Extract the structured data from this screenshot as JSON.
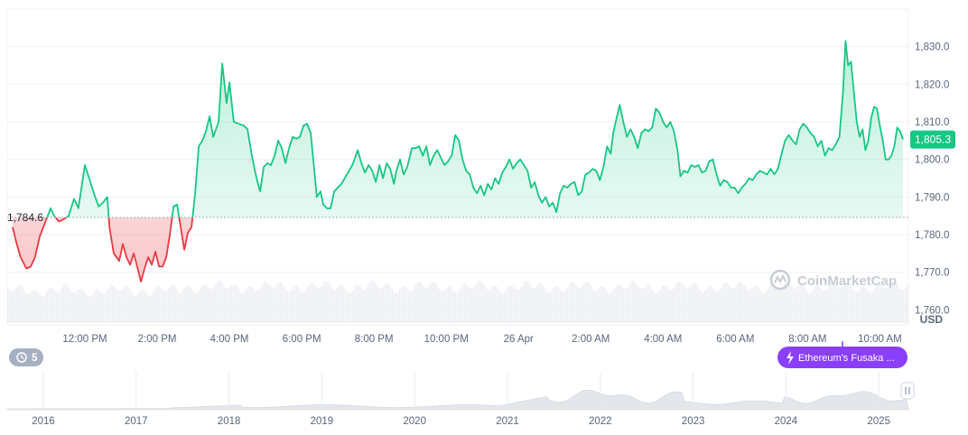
{
  "chart_data": {
    "type": "line",
    "currency": "USD",
    "watermark": "CoinMarketCap",
    "reference_price": 1784.6,
    "reference_label": "1,784.6",
    "current_price": 1805.3,
    "current_label": "1,805.3",
    "ylim": [
      1756,
      1840
    ],
    "y_ticks": [
      {
        "value": 1830,
        "label": "1,830.0"
      },
      {
        "value": 1820,
        "label": "1,820.0"
      },
      {
        "value": 1810,
        "label": "1,810.0"
      },
      {
        "value": 1800,
        "label": "1,800.0"
      },
      {
        "value": 1790,
        "label": "1,790.0"
      },
      {
        "value": 1780,
        "label": "1,780.0"
      },
      {
        "value": 1770,
        "label": "1,770.0"
      },
      {
        "value": 1760,
        "label": "1,760.0"
      }
    ],
    "x_ticks": [
      {
        "t": 2,
        "label": "12:00 PM"
      },
      {
        "t": 4,
        "label": "2:00 PM"
      },
      {
        "t": 6,
        "label": "4:00 PM"
      },
      {
        "t": 8,
        "label": "6:00 PM"
      },
      {
        "t": 10,
        "label": "8:00 PM"
      },
      {
        "t": 12,
        "label": "10:00 PM"
      },
      {
        "t": 14,
        "label": "26 Apr"
      },
      {
        "t": 16,
        "label": "2:00 AM"
      },
      {
        "t": 18,
        "label": "4:00 AM"
      },
      {
        "t": 20,
        "label": "6:00 AM"
      },
      {
        "t": 22,
        "label": "8:00 AM"
      },
      {
        "t": 24,
        "label": "10:00 AM"
      }
    ],
    "price_points": [
      [
        0.0,
        1782.0
      ],
      [
        0.1,
        1778.0
      ],
      [
        0.22,
        1774.0
      ],
      [
        0.38,
        1771.0
      ],
      [
        0.5,
        1771.5
      ],
      [
        0.62,
        1774.0
      ],
      [
        0.75,
        1779.5
      ],
      [
        0.85,
        1782.0
      ],
      [
        1.05,
        1787.0
      ],
      [
        1.15,
        1785.0
      ],
      [
        1.28,
        1783.5
      ],
      [
        1.4,
        1784.0
      ],
      [
        1.55,
        1785.0
      ],
      [
        1.7,
        1789.5
      ],
      [
        1.82,
        1787.0
      ],
      [
        2.0,
        1798.5
      ],
      [
        2.12,
        1795.0
      ],
      [
        2.25,
        1791.0
      ],
      [
        2.38,
        1787.5
      ],
      [
        2.5,
        1788.5
      ],
      [
        2.62,
        1790.0
      ],
      [
        2.68,
        1782.0
      ],
      [
        2.8,
        1775.0
      ],
      [
        2.95,
        1773.0
      ],
      [
        3.05,
        1777.5
      ],
      [
        3.15,
        1774.0
      ],
      [
        3.25,
        1772.0
      ],
      [
        3.35,
        1775.0
      ],
      [
        3.42,
        1772.5
      ],
      [
        3.55,
        1767.5
      ],
      [
        3.65,
        1771.0
      ],
      [
        3.75,
        1774.0
      ],
      [
        3.85,
        1772.0
      ],
      [
        3.95,
        1775.5
      ],
      [
        4.05,
        1771.5
      ],
      [
        4.15,
        1771.5
      ],
      [
        4.25,
        1774.0
      ],
      [
        4.35,
        1780.0
      ],
      [
        4.45,
        1787.5
      ],
      [
        4.55,
        1788.0
      ],
      [
        4.65,
        1782.0
      ],
      [
        4.75,
        1776.0
      ],
      [
        4.85,
        1780.5
      ],
      [
        4.95,
        1782.0
      ],
      [
        5.05,
        1791.0
      ],
      [
        5.15,
        1803.5
      ],
      [
        5.25,
        1805.0
      ],
      [
        5.35,
        1807.5
      ],
      [
        5.45,
        1811.5
      ],
      [
        5.55,
        1806.0
      ],
      [
        5.7,
        1810.0
      ],
      [
        5.8,
        1825.5
      ],
      [
        5.92,
        1815.0
      ],
      [
        6.0,
        1820.5
      ],
      [
        6.12,
        1810.0
      ],
      [
        6.25,
        1809.5
      ],
      [
        6.4,
        1809.0
      ],
      [
        6.5,
        1808.0
      ],
      [
        6.62,
        1801.0
      ],
      [
        6.75,
        1795.0
      ],
      [
        6.85,
        1791.5
      ],
      [
        6.95,
        1798.0
      ],
      [
        7.05,
        1799.0
      ],
      [
        7.15,
        1798.5
      ],
      [
        7.25,
        1801.0
      ],
      [
        7.35,
        1805.0
      ],
      [
        7.45,
        1803.0
      ],
      [
        7.55,
        1799.0
      ],
      [
        7.65,
        1803.0
      ],
      [
        7.75,
        1806.0
      ],
      [
        7.85,
        1805.5
      ],
      [
        7.95,
        1806.0
      ],
      [
        8.05,
        1809.0
      ],
      [
        8.15,
        1809.5
      ],
      [
        8.25,
        1807.0
      ],
      [
        8.35,
        1797.0
      ],
      [
        8.42,
        1790.0
      ],
      [
        8.52,
        1791.5
      ],
      [
        8.6,
        1788.0
      ],
      [
        8.7,
        1787.0
      ],
      [
        8.8,
        1787.0
      ],
      [
        8.9,
        1791.5
      ],
      [
        9.0,
        1792.5
      ],
      [
        9.1,
        1793.5
      ],
      [
        9.25,
        1796.0
      ],
      [
        9.4,
        1798.5
      ],
      [
        9.55,
        1802.5
      ],
      [
        9.65,
        1799.0
      ],
      [
        9.75,
        1796.5
      ],
      [
        9.85,
        1798.5
      ],
      [
        9.95,
        1797.0
      ],
      [
        10.05,
        1794.0
      ],
      [
        10.15,
        1798.5
      ],
      [
        10.25,
        1795.0
      ],
      [
        10.35,
        1799.0
      ],
      [
        10.45,
        1797.5
      ],
      [
        10.55,
        1793.5
      ],
      [
        10.62,
        1797.0
      ],
      [
        10.72,
        1800.0
      ],
      [
        10.82,
        1796.0
      ],
      [
        10.92,
        1798.0
      ],
      [
        11.05,
        1803.0
      ],
      [
        11.15,
        1803.0
      ],
      [
        11.25,
        1803.5
      ],
      [
        11.35,
        1801.0
      ],
      [
        11.45,
        1803.5
      ],
      [
        11.55,
        1798.5
      ],
      [
        11.65,
        1801.0
      ],
      [
        11.75,
        1802.5
      ],
      [
        11.85,
        1800.5
      ],
      [
        11.95,
        1798.5
      ],
      [
        12.05,
        1799.5
      ],
      [
        12.15,
        1801.0
      ],
      [
        12.25,
        1806.5
      ],
      [
        12.35,
        1805.0
      ],
      [
        12.45,
        1800.0
      ],
      [
        12.55,
        1797.0
      ],
      [
        12.65,
        1796.0
      ],
      [
        12.75,
        1792.5
      ],
      [
        12.85,
        1791.0
      ],
      [
        12.95,
        1793.0
      ],
      [
        13.05,
        1790.5
      ],
      [
        13.15,
        1793.5
      ],
      [
        13.25,
        1792.0
      ],
      [
        13.35,
        1795.0
      ],
      [
        13.45,
        1793.5
      ],
      [
        13.55,
        1796.5
      ],
      [
        13.65,
        1798.0
      ],
      [
        13.75,
        1800.0
      ],
      [
        13.85,
        1797.5
      ],
      [
        13.95,
        1799.0
      ],
      [
        14.05,
        1800.0
      ],
      [
        14.15,
        1798.5
      ],
      [
        14.25,
        1797.0
      ],
      [
        14.35,
        1792.5
      ],
      [
        14.45,
        1794.0
      ],
      [
        14.55,
        1790.5
      ],
      [
        14.65,
        1788.5
      ],
      [
        14.75,
        1790.0
      ],
      [
        14.85,
        1787.5
      ],
      [
        14.95,
        1788.5
      ],
      [
        15.05,
        1786.0
      ],
      [
        15.15,
        1791.0
      ],
      [
        15.25,
        1793.0
      ],
      [
        15.35,
        1792.5
      ],
      [
        15.45,
        1793.5
      ],
      [
        15.55,
        1794.0
      ],
      [
        15.65,
        1790.5
      ],
      [
        15.75,
        1791.5
      ],
      [
        15.85,
        1796.0
      ],
      [
        15.95,
        1796.5
      ],
      [
        16.05,
        1797.5
      ],
      [
        16.15,
        1797.0
      ],
      [
        16.25,
        1794.5
      ],
      [
        16.35,
        1798.0
      ],
      [
        16.45,
        1803.5
      ],
      [
        16.55,
        1801.5
      ],
      [
        16.62,
        1807.0
      ],
      [
        16.7,
        1810.5
      ],
      [
        16.8,
        1814.5
      ],
      [
        16.9,
        1810.0
      ],
      [
        17.0,
        1806.0
      ],
      [
        17.1,
        1808.0
      ],
      [
        17.2,
        1806.0
      ],
      [
        17.3,
        1803.0
      ],
      [
        17.4,
        1807.0
      ],
      [
        17.5,
        1808.0
      ],
      [
        17.6,
        1807.5
      ],
      [
        17.7,
        1808.5
      ],
      [
        17.8,
        1813.5
      ],
      [
        17.9,
        1812.5
      ],
      [
        18.0,
        1810.0
      ],
      [
        18.1,
        1808.5
      ],
      [
        18.2,
        1810.0
      ],
      [
        18.3,
        1807.5
      ],
      [
        18.4,
        1802.5
      ],
      [
        18.48,
        1795.5
      ],
      [
        18.58,
        1797.0
      ],
      [
        18.68,
        1796.5
      ],
      [
        18.78,
        1798.5
      ],
      [
        18.88,
        1798.0
      ],
      [
        18.98,
        1798.5
      ],
      [
        19.08,
        1796.5
      ],
      [
        19.18,
        1797.0
      ],
      [
        19.28,
        1799.5
      ],
      [
        19.38,
        1800.0
      ],
      [
        19.48,
        1796.0
      ],
      [
        19.58,
        1793.0
      ],
      [
        19.68,
        1794.5
      ],
      [
        19.78,
        1794.0
      ],
      [
        19.88,
        1792.5
      ],
      [
        19.98,
        1792.5
      ],
      [
        20.08,
        1791.0
      ],
      [
        20.18,
        1792.5
      ],
      [
        20.28,
        1793.5
      ],
      [
        20.38,
        1795.0
      ],
      [
        20.48,
        1794.5
      ],
      [
        20.58,
        1796.0
      ],
      [
        20.68,
        1797.0
      ],
      [
        20.78,
        1796.5
      ],
      [
        20.88,
        1796.0
      ],
      [
        20.98,
        1797.5
      ],
      [
        21.08,
        1796.0
      ],
      [
        21.18,
        1797.5
      ],
      [
        21.28,
        1801.5
      ],
      [
        21.38,
        1805.0
      ],
      [
        21.48,
        1806.5
      ],
      [
        21.58,
        1805.0
      ],
      [
        21.68,
        1804.0
      ],
      [
        21.78,
        1808.0
      ],
      [
        21.88,
        1809.5
      ],
      [
        21.98,
        1808.5
      ],
      [
        22.08,
        1807.0
      ],
      [
        22.18,
        1806.0
      ],
      [
        22.28,
        1803.5
      ],
      [
        22.38,
        1805.0
      ],
      [
        22.48,
        1801.0
      ],
      [
        22.58,
        1803.0
      ],
      [
        22.68,
        1802.5
      ],
      [
        22.78,
        1804.0
      ],
      [
        22.88,
        1806.0
      ],
      [
        22.98,
        1818.0
      ],
      [
        23.05,
        1831.5
      ],
      [
        23.12,
        1825.0
      ],
      [
        23.2,
        1826.0
      ],
      [
        23.28,
        1818.0
      ],
      [
        23.36,
        1810.0
      ],
      [
        23.44,
        1806.0
      ],
      [
        23.52,
        1808.0
      ],
      [
        23.6,
        1802.5
      ],
      [
        23.68,
        1805.0
      ],
      [
        23.76,
        1811.0
      ],
      [
        23.84,
        1814.0
      ],
      [
        23.92,
        1813.5
      ],
      [
        24.0,
        1809.0
      ],
      [
        24.08,
        1805.0
      ],
      [
        24.16,
        1800.0
      ],
      [
        24.24,
        1800.0
      ],
      [
        24.32,
        1801.0
      ],
      [
        24.4,
        1803.5
      ],
      [
        24.48,
        1808.5
      ],
      [
        24.56,
        1807.5
      ],
      [
        24.64,
        1805.3
      ]
    ],
    "navigator": {
      "x_ticks": [
        "2016",
        "2017",
        "2018",
        "2019",
        "2020",
        "2021",
        "2022",
        "2023",
        "2024",
        "2025"
      ]
    },
    "event_badge_count": "5",
    "event_label": "Ethereum's Fusaka ..."
  }
}
